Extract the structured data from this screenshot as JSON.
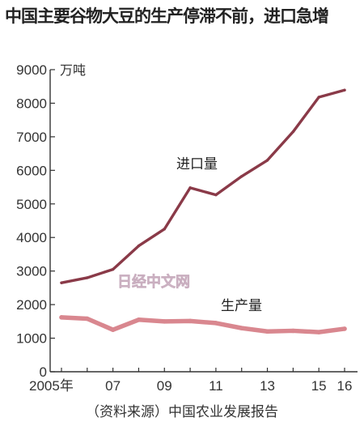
{
  "title": "中国主要谷物大豆的生产停滞不前，进口急增",
  "source": "（资料来源）中国农业发展报告",
  "watermark": "日经中文网",
  "colors": {
    "imports": "#8a3a48",
    "production": "#d9878f"
  },
  "chart_data": {
    "type": "line",
    "x": [
      2005,
      2006,
      2007,
      2008,
      2009,
      2010,
      2011,
      2012,
      2013,
      2014,
      2015,
      2016
    ],
    "x_tick_values": [
      2005,
      2007,
      2009,
      2011,
      2013,
      2015,
      2016
    ],
    "x_tick_labels": [
      "2005年",
      "07",
      "09",
      "11",
      "13",
      "15",
      "16"
    ],
    "ylim": [
      0,
      9000
    ],
    "y_ticks": [
      0,
      1000,
      2000,
      3000,
      4000,
      5000,
      6000,
      7000,
      8000,
      9000
    ],
    "y_unit": "万吨",
    "grid": false,
    "series": [
      {
        "name": "进口量",
        "values": [
          2650,
          2800,
          3050,
          3750,
          4250,
          5480,
          5270,
          5820,
          6300,
          7150,
          8180,
          8390
        ]
      },
      {
        "name": "生产量",
        "values": [
          1620,
          1580,
          1250,
          1550,
          1500,
          1510,
          1450,
          1300,
          1200,
          1220,
          1180,
          1280
        ]
      }
    ]
  }
}
